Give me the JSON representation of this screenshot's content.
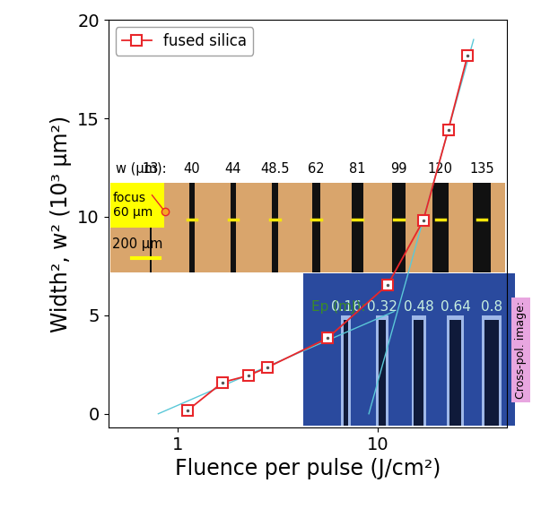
{
  "chart_data": {
    "type": "line",
    "x_label": "Fluence per pulse (J/cm²)",
    "y_label": "Width², w² (10³ µm²)",
    "log": "x",
    "xlim": [
      0.45,
      44
    ],
    "ylim": [
      -0.7,
      20
    ],
    "xticks": [
      1,
      10
    ],
    "yticks": [
      0,
      5,
      10,
      15,
      20
    ],
    "legend": "upper left",
    "series": [
      {
        "name": "fused silica",
        "color": "#e8262a",
        "marker": "square",
        "line_style": "solid",
        "x": [
          1.12,
          1.68,
          2.25,
          2.8,
          5.6,
          11.2,
          16.8,
          22.4,
          28.0
        ],
        "values": [
          0.17,
          1.6,
          1.94,
          2.35,
          3.84,
          6.56,
          9.8,
          14.4,
          18.2
        ]
      },
      {
        "color": "#5bc8d8",
        "line_style": "solid",
        "x": [
          0.8,
          12
        ],
        "values": [
          0,
          5.19
        ]
      },
      {
        "color": "#5bc8d8",
        "line_style": "solid",
        "x": [
          9,
          30
        ],
        "values": [
          0,
          19
        ]
      }
    ],
    "annotations": {
      "width_label": "w (µm):",
      "widths": [
        13,
        40,
        44,
        48.5,
        62,
        81,
        99,
        120,
        135
      ],
      "focus": [
        "focus",
        "60 µm"
      ],
      "scale_bar": "200 µm",
      "pulse_energy_label": "Ep (mJ):",
      "pulse_energies": [
        0.16,
        0.32,
        0.48,
        0.64,
        0.8
      ],
      "cross_pol": "Cross-pol. image:"
    }
  }
}
